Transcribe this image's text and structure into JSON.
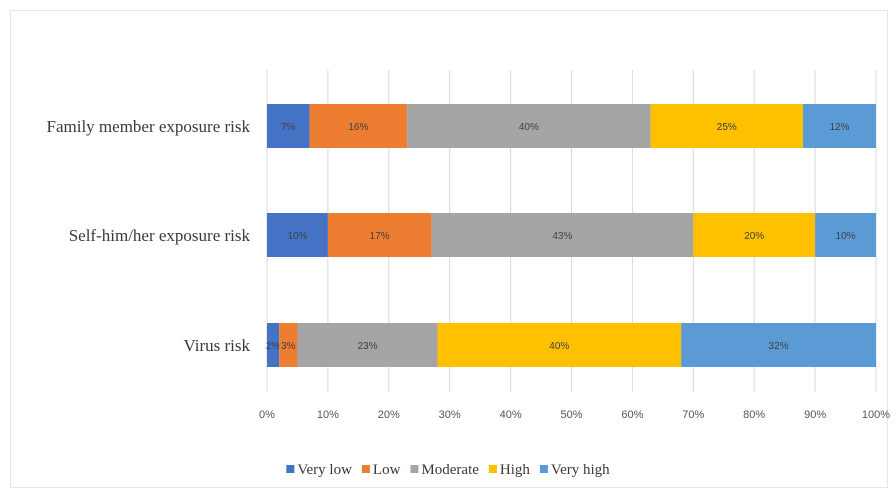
{
  "chart_data": {
    "type": "bar",
    "orientation": "horizontal",
    "stacked": true,
    "title": "",
    "xlabel": "",
    "ylabel": "",
    "xlim": [
      0,
      100
    ],
    "x_ticks": [
      "0%",
      "10%",
      "20%",
      "30%",
      "40%",
      "50%",
      "60%",
      "70%",
      "80%",
      "90%",
      "100%"
    ],
    "grid": true,
    "legend_position": "bottom",
    "categories": [
      "Family member exposure  risk",
      "Self-him/her exposure  risk",
      "Virus risk"
    ],
    "series": [
      {
        "name": "Very low",
        "color": "#4472C4",
        "values": [
          7,
          10,
          2
        ]
      },
      {
        "name": "Low",
        "color": "#ED7D31",
        "values": [
          16,
          17,
          3
        ]
      },
      {
        "name": "Moderate",
        "color": "#A5A5A5",
        "values": [
          40,
          43,
          23
        ]
      },
      {
        "name": "High",
        "color": "#FFC000",
        "values": [
          25,
          20,
          40
        ]
      },
      {
        "name": "Very high",
        "color": "#5B9BD5",
        "values": [
          12,
          10,
          32
        ]
      }
    ],
    "data_labels": [
      [
        "7%",
        "16%",
        "40%",
        "25%",
        "12%"
      ],
      [
        "10%",
        "17%",
        "43%",
        "20%",
        "10%"
      ],
      [
        "2%",
        "3%",
        "23%",
        "40%",
        "32%"
      ]
    ]
  }
}
